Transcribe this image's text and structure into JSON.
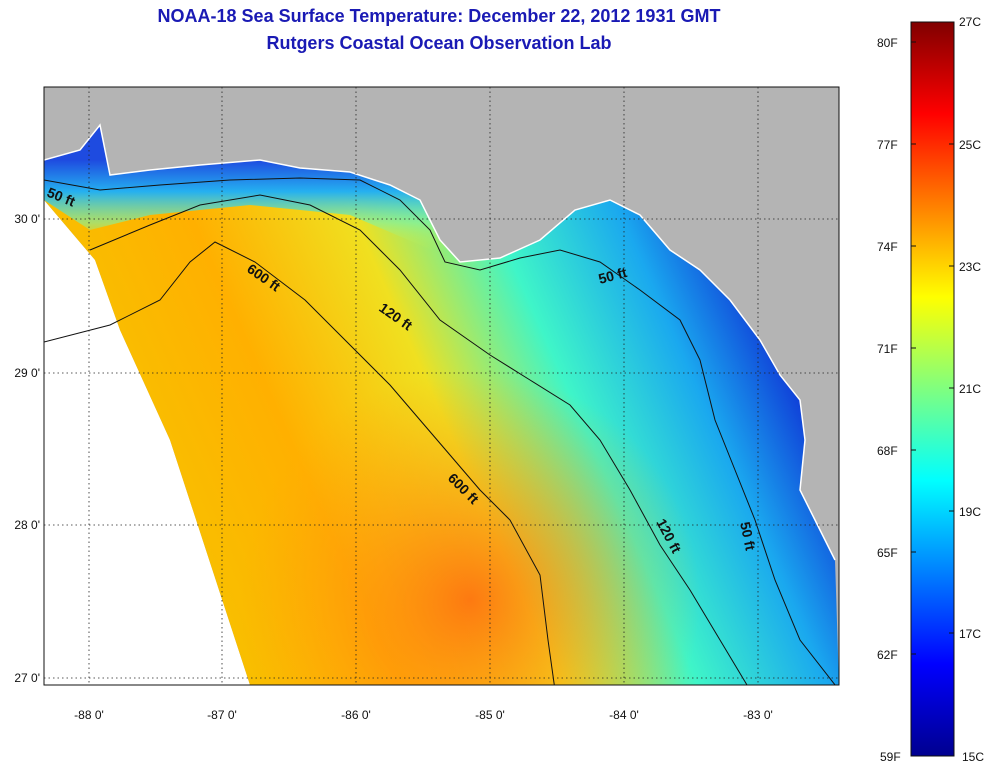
{
  "title": "NOAA-18 Sea Surface Temperature:  December 22, 2012 1931 GMT",
  "subtitle": "Rutgers Coastal Ocean Observation Lab",
  "colors": {
    "title": "#1a1ab4",
    "land": "#b4b4b4",
    "contour": "#111111"
  },
  "map": {
    "lat_ticks": [
      "30 0'",
      "29 0'",
      "28 0'",
      "27 0'"
    ],
    "lon_ticks": [
      "-88 0'",
      "-87 0'",
      "-86 0'",
      "-85 0'",
      "-84 0'",
      "-83 0'"
    ],
    "contour_labels": [
      "50 ft",
      "600 ft",
      "120 ft",
      "50 ft",
      "600 ft",
      "120 ft",
      "50 ft"
    ]
  },
  "colorbar": {
    "fahrenheit": [
      "80F",
      "77F",
      "74F",
      "71F",
      "68F",
      "65F",
      "62F",
      "59F"
    ],
    "celsius": [
      "27C",
      "25C",
      "23C",
      "21C",
      "19C",
      "17C",
      "15C"
    ]
  }
}
